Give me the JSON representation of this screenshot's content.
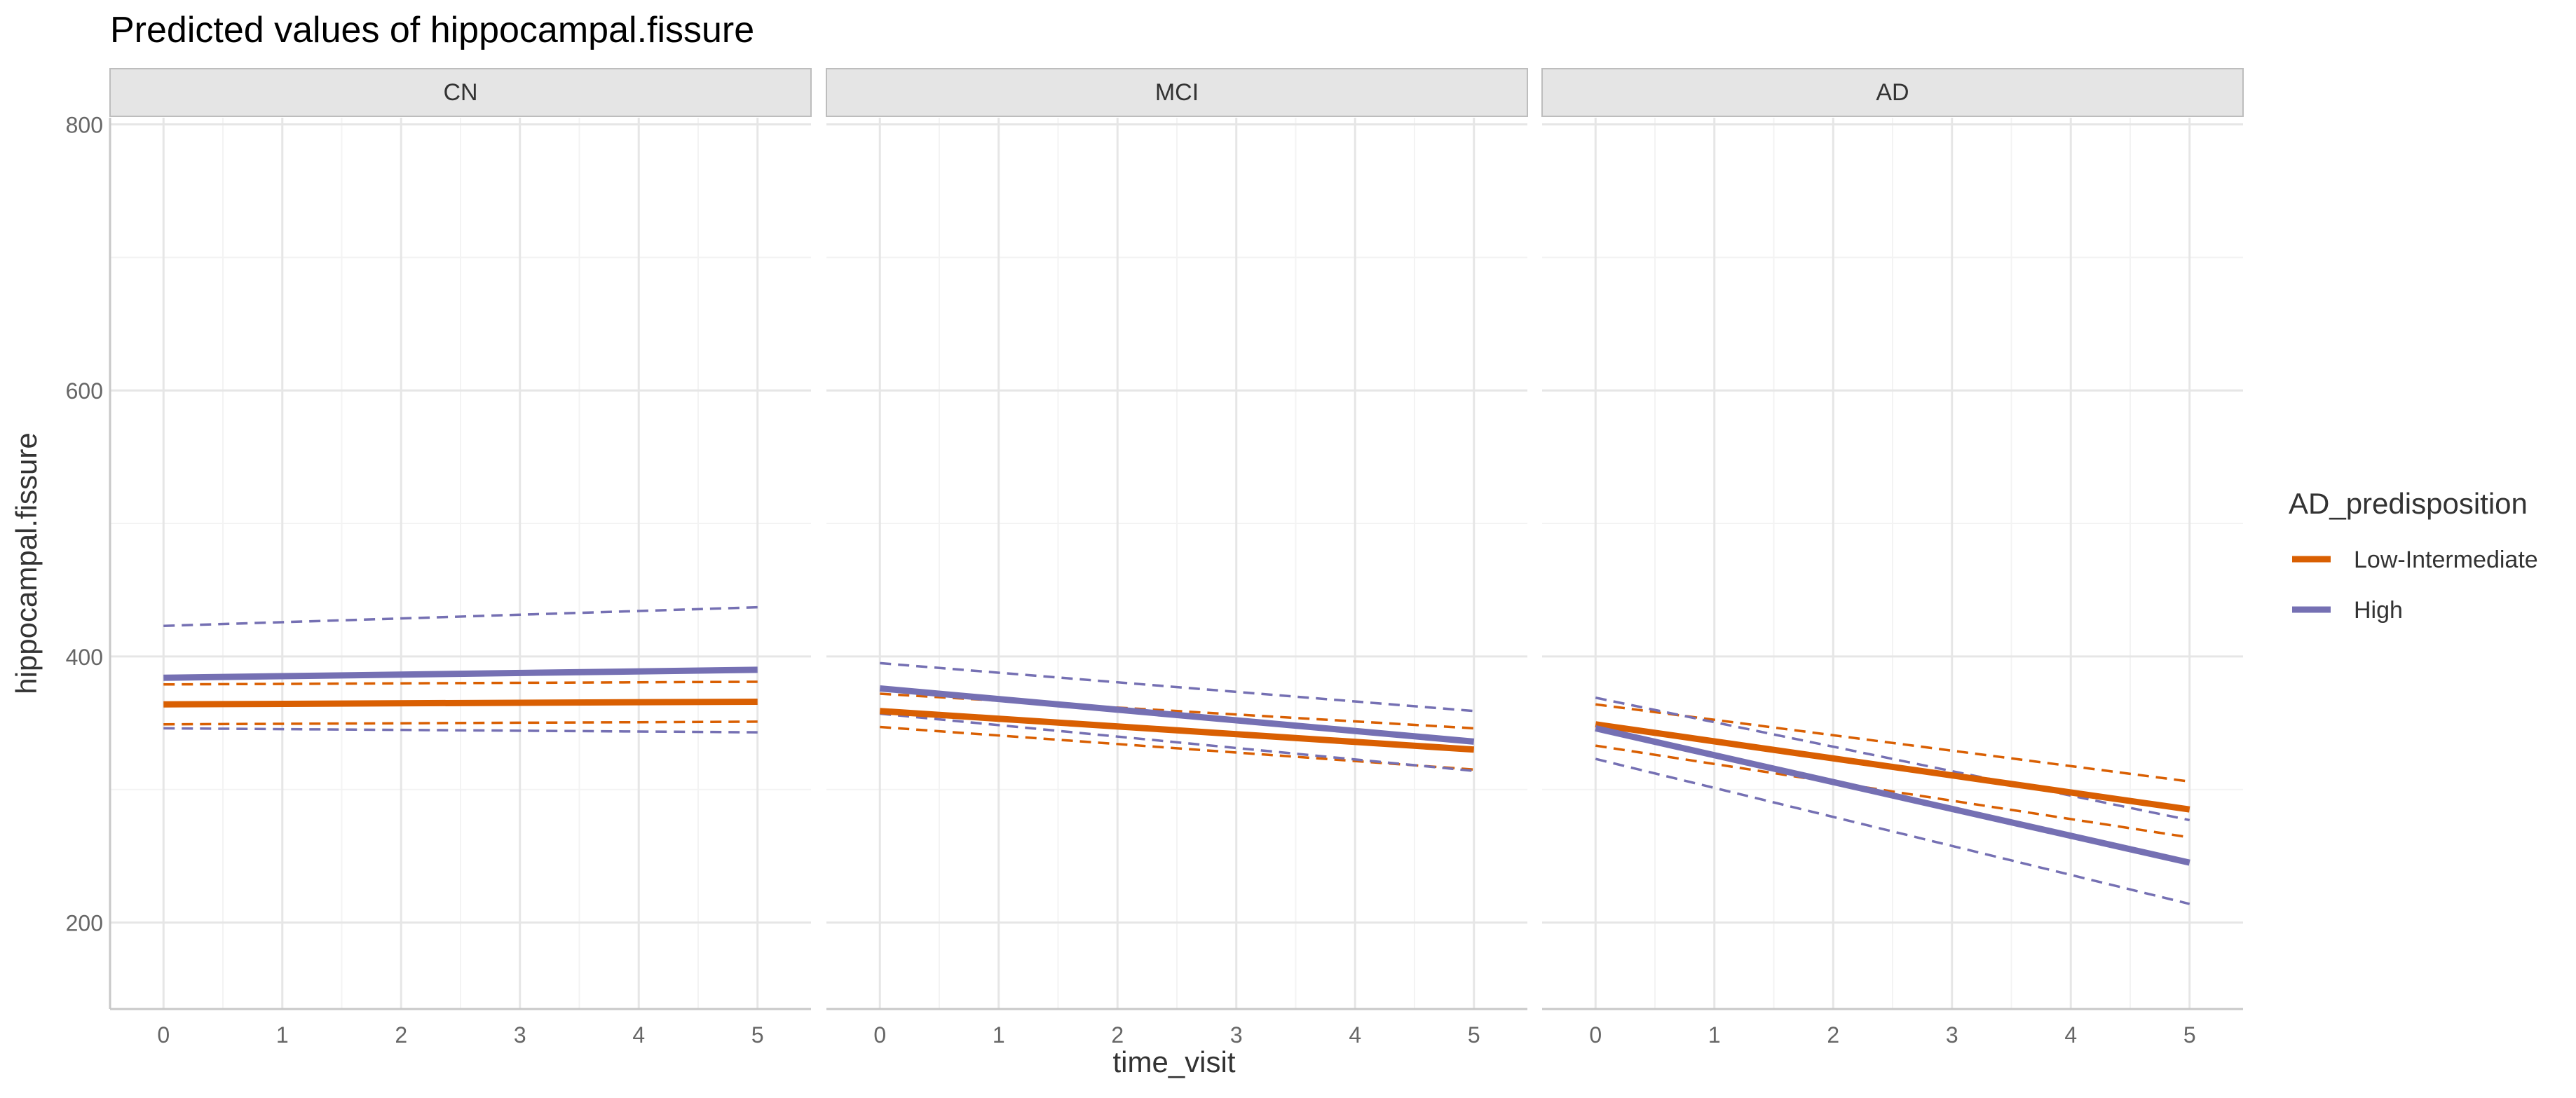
{
  "chart_data": {
    "type": "line",
    "title": "Predicted values of hippocampal.fissure",
    "xlabel": "time_visit",
    "ylabel": "hippocampal.fissure",
    "xlim": [
      -0.45,
      5.45
    ],
    "ylim": [
      135,
      805
    ],
    "x_ticks": [
      0,
      1,
      2,
      3,
      4,
      5
    ],
    "y_ticks": [
      200,
      400,
      600,
      800
    ],
    "grid": true,
    "legend": {
      "title": "AD_predisposition",
      "position": "right",
      "entries": [
        {
          "label": "Low-Intermediate",
          "color": "#d95f02"
        },
        {
          "label": "High",
          "color": "#7570b3"
        }
      ]
    },
    "panels": [
      {
        "label": "CN",
        "x_range": [
          0,
          5
        ],
        "series": [
          {
            "name": "Low-Intermediate",
            "color": "#d95f02",
            "fit": [
              364,
              366
            ],
            "ci_low": [
              349,
              351
            ],
            "ci_high": [
              379,
              381
            ]
          },
          {
            "name": "High",
            "color": "#7570b3",
            "fit": [
              384,
              390
            ],
            "ci_low": [
              346,
              343
            ],
            "ci_high": [
              423,
              437
            ]
          }
        ]
      },
      {
        "label": "MCI",
        "x_range": [
          0,
          5
        ],
        "series": [
          {
            "name": "Low-Intermediate",
            "color": "#d95f02",
            "fit": [
              359,
              330
            ],
            "ci_low": [
              347,
              315
            ],
            "ci_high": [
              372,
              346
            ]
          },
          {
            "name": "High",
            "color": "#7570b3",
            "fit": [
              376,
              336
            ],
            "ci_low": [
              357,
              314
            ],
            "ci_high": [
              395,
              359
            ]
          }
        ]
      },
      {
        "label": "AD",
        "x_range": [
          0,
          5
        ],
        "series": [
          {
            "name": "Low-Intermediate",
            "color": "#d95f02",
            "fit": [
              349,
              285
            ],
            "ci_low": [
              333,
              264
            ],
            "ci_high": [
              364,
              306
            ]
          },
          {
            "name": "High",
            "color": "#7570b3",
            "fit": [
              346,
              245
            ],
            "ci_low": [
              323,
              214
            ],
            "ci_high": [
              369,
              277
            ]
          }
        ]
      }
    ]
  }
}
